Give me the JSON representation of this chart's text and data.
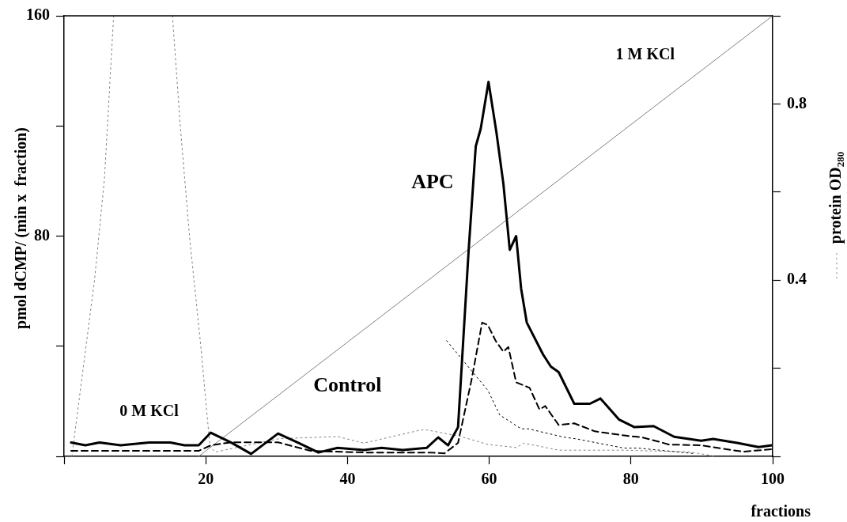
{
  "chart_data": {
    "type": "line",
    "xlabel": "fractions",
    "ylabel": "pmol dCMP/ (min x  fraction)",
    "y2label": "protein OD$_{280}$",
    "xlim": [
      0,
      100
    ],
    "xticks": [
      {
        "value": 0,
        "label": null
      },
      20,
      40,
      60,
      80,
      100
    ],
    "ylim": [
      0,
      160
    ],
    "yticks": [
      {
        "value": 0,
        "label": null
      },
      {
        "value": 40,
        "label": null
      },
      80,
      {
        "value": 120,
        "label": null
      },
      160
    ],
    "y2lim": [
      0,
      1.0
    ],
    "y2ticks": [
      {
        "value": 0,
        "label": null
      },
      {
        "value": 0.2,
        "label": null
      },
      0.4,
      {
        "value": 0.6,
        "label": null
      },
      0.8,
      {
        "value": 1.0,
        "label": null
      }
    ],
    "grid": false,
    "legend": false,
    "marker": "none",
    "annotations": [
      "0 M KCl",
      "1 M KCl"
    ],
    "series": [
      {
        "name": "APC",
        "color": "#000000",
        "line_style": "solid",
        "x": [
          1,
          3,
          5,
          8,
          12,
          15,
          17,
          19,
          20.7,
          23.6,
          26.4,
          30.2,
          33,
          35.9,
          38.6,
          42.3,
          44.8,
          47.8,
          51.2,
          52.8,
          54.2,
          55.6,
          57.1,
          58.1,
          58.8,
          59.9,
          61.0,
          62.0,
          62.9,
          63.8,
          64.5,
          65.3,
          67.6,
          68.7,
          69.8,
          72.0,
          74.2,
          75.7,
          78.3,
          80.5,
          83.2,
          86.1,
          89.9,
          91.6,
          95,
          98,
          99.9
        ],
        "values": [
          5,
          4,
          5,
          4,
          5,
          5,
          4,
          4,
          8.6,
          5,
          0.9,
          8.3,
          5,
          1.4,
          3.1,
          2.3,
          3.1,
          2.3,
          3.1,
          6.9,
          4,
          10.6,
          75,
          112.6,
          119,
          136,
          118,
          99,
          75,
          80,
          61,
          48.6,
          37,
          32.6,
          30.6,
          19.1,
          19.1,
          21,
          13.4,
          10.6,
          11,
          7.1,
          5.7,
          6.3,
          4.9,
          3.4,
          4
        ]
      },
      {
        "name": "Control",
        "color": "#000000",
        "line_style": "dashed",
        "x": [
          1,
          5,
          10,
          15,
          19,
          20.7,
          23.6,
          30.2,
          34.8,
          42.3,
          51.5,
          53.7,
          55.6,
          57.5,
          59,
          59.8,
          60.9,
          62,
          62.7,
          63.8,
          65.7,
          67.1,
          67.9,
          69.8,
          72,
          74.9,
          78.7,
          81.6,
          85.4,
          89.9,
          95.8,
          99.9
        ],
        "values": [
          2,
          2,
          2,
          2,
          2,
          4,
          5.1,
          5.1,
          2,
          1.4,
          1.4,
          1.1,
          4.9,
          27.7,
          48.6,
          47.7,
          42,
          38,
          39.7,
          26.9,
          24.9,
          17,
          18.3,
          11.4,
          12,
          9.1,
          7.7,
          6.9,
          4.3,
          4,
          1.7,
          2.6
        ]
      },
      {
        "color": "#000000",
        "line_style": "dotted",
        "x": [
          54,
          59.8,
          61.5,
          64.5,
          65.5,
          70.5,
          72.4,
          79,
          81,
          89
        ],
        "values": [
          42,
          24,
          15,
          10,
          10,
          7,
          6.3,
          3,
          3,
          1
        ]
      },
      {
        "color": "#808080",
        "line_style": "dotted",
        "axis": "y2",
        "x": [
          1.1,
          4.3,
          5.7,
          7.0,
          11,
          15.3,
          16.4,
          17.7,
          19.3,
          20.6,
          21.4,
          30.3,
          38.6,
          42.3,
          50.4,
          51.2,
          56,
          59.8,
          63.8,
          64.9,
          69.8,
          78.7,
          88.3,
          92
        ],
        "values": [
          0.0,
          0.4,
          0.63,
          1.0,
          null,
          1.0,
          0.75,
          0.5,
          0.25,
          0.02,
          0.01,
          0.04,
          0.045,
          0.03,
          0.06,
          0.06,
          0.045,
          0.027,
          0.02,
          0.03,
          0.014,
          0.014,
          0.01,
          0.0
        ]
      },
      {
        "color": "#808080",
        "line_style": "solid",
        "axis": "y2",
        "x": [
          19,
          100
        ],
        "values": [
          0,
          1.0
        ]
      }
    ]
  }
}
